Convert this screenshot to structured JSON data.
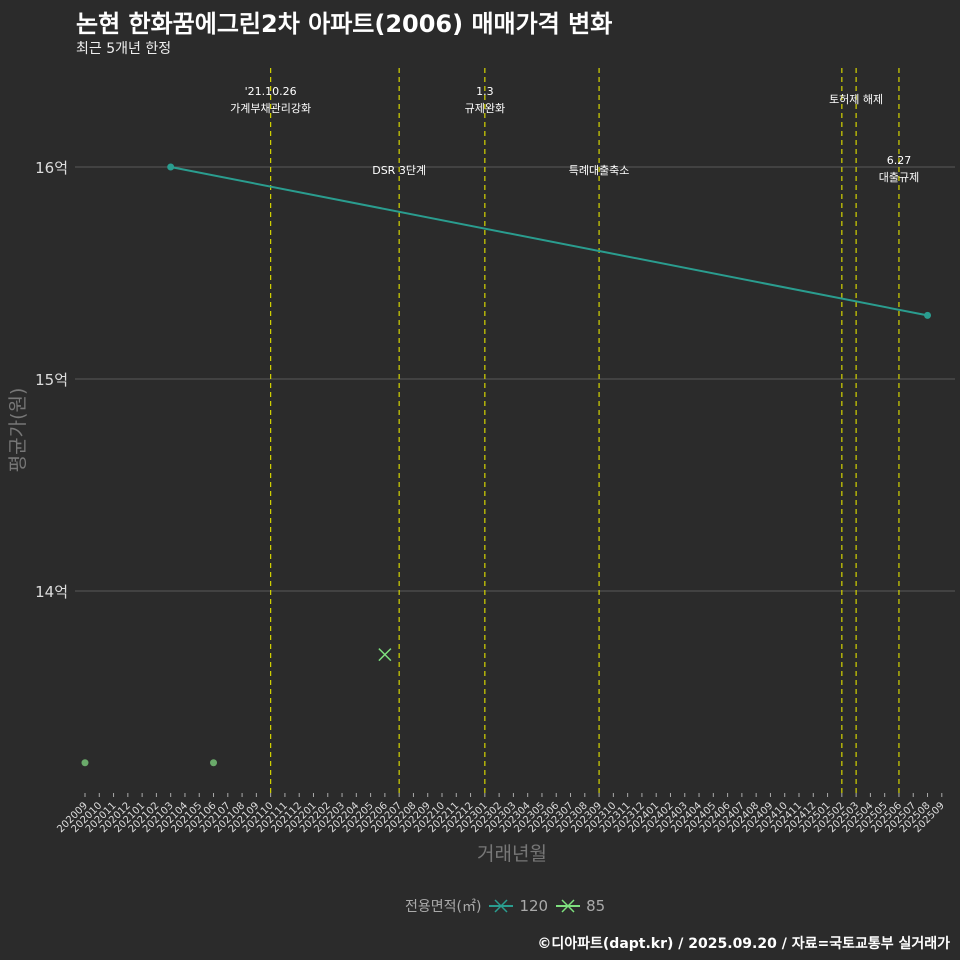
{
  "title": "논현 한화꿈에그린2차 아파트(2006) 매매가격 변화",
  "subtitle": "최근 5개년 한정",
  "caption": "©디아파트(dapt.kr) / 2025.09.20 / 자료=국토교통부 실거래가",
  "chart_data": {
    "type": "line",
    "title": "논현 한화꿈에그린2차 아파트(2006) 매매가격 변화",
    "xlabel": "거래년월",
    "ylabel": "평균가(원)",
    "categories": [
      "202009",
      "202010",
      "202011",
      "202012",
      "202101",
      "202102",
      "202103",
      "202104",
      "202105",
      "202106",
      "202107",
      "202108",
      "202109",
      "202110",
      "202111",
      "202112",
      "202201",
      "202202",
      "202203",
      "202204",
      "202205",
      "202206",
      "202207",
      "202208",
      "202209",
      "202210",
      "202211",
      "202212",
      "202301",
      "202302",
      "202303",
      "202304",
      "202305",
      "202306",
      "202307",
      "202308",
      "202309",
      "202310",
      "202311",
      "202312",
      "202401",
      "202402",
      "202403",
      "202404",
      "202405",
      "202406",
      "202407",
      "202408",
      "202409",
      "202410",
      "202411",
      "202412",
      "202501",
      "202502",
      "202503",
      "202504",
      "202505",
      "202506",
      "202507",
      "202508",
      "202509"
    ],
    "yticks": [
      {
        "value": 14,
        "label": "14억"
      },
      {
        "value": 15,
        "label": "15억"
      },
      {
        "value": 16,
        "label": "16억"
      }
    ],
    "ylim": [
      13.0,
      16.55
    ],
    "grid": true,
    "legend": {
      "title": "전용면적(㎡)",
      "placement": "bottom"
    },
    "series": [
      {
        "name": "120",
        "color": "#2a9d8f",
        "points": [
          {
            "x": "202103",
            "y": 16.0
          },
          {
            "x": "202508",
            "y": 15.3
          }
        ]
      },
      {
        "name": "85",
        "color": "#7ee07e",
        "points": [
          {
            "x": "202009",
            "y": 13.19
          },
          {
            "x": "202106",
            "y": 13.19
          },
          {
            "x": "202206",
            "y": 13.7,
            "marker": "x"
          }
        ]
      }
    ],
    "events": [
      {
        "month": "202110",
        "lines": [
          "'21.10.26",
          "가계부채관리강화"
        ],
        "pos": "top"
      },
      {
        "month": "202207",
        "lines": [
          "DSR 3단계"
        ],
        "pos": "mid"
      },
      {
        "month": "202301",
        "lines": [
          "1.3",
          "규제완화"
        ],
        "pos": "top"
      },
      {
        "month": "202309",
        "lines": [
          "특례대출축소"
        ],
        "pos": "mid"
      },
      {
        "month": "202502",
        "lines": [],
        "pos": "top"
      },
      {
        "month": "202503",
        "lines": [
          "토허제 해제"
        ],
        "pos": "top2"
      },
      {
        "month": "202506",
        "lines": [
          "6.27",
          "대출규제"
        ],
        "pos": "low"
      }
    ]
  }
}
